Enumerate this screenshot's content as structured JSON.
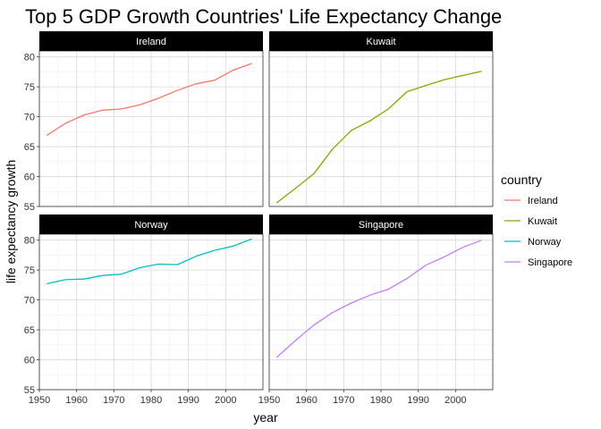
{
  "chart_data": {
    "type": "line",
    "title": "Top 5 GDP Growth Countries' Life Expectancy Change",
    "xlabel": "year",
    "ylabel": "life expectancy growth",
    "xlim": [
      1950,
      2010
    ],
    "x_ticks": [
      1950,
      1960,
      1970,
      1980,
      1990,
      2000
    ],
    "ylim": [
      55,
      81
    ],
    "y_ticks": [
      55,
      60,
      65,
      70,
      75,
      80
    ],
    "grid": true,
    "facets": "2x2, shared y-axis per row",
    "legend": {
      "title": "country",
      "position": "right"
    },
    "x": [
      1952,
      1957,
      1962,
      1967,
      1972,
      1977,
      1982,
      1987,
      1992,
      1997,
      2002,
      2007
    ],
    "series": [
      {
        "name": "Ireland",
        "color": "#F8766D",
        "values": [
          66.9,
          68.9,
          70.3,
          71.1,
          71.3,
          72.0,
          73.1,
          74.4,
          75.5,
          76.1,
          77.8,
          78.9
        ]
      },
      {
        "name": "Kuwait",
        "color": "#7CAE00",
        "values": [
          55.6,
          58.0,
          60.5,
          64.6,
          67.7,
          69.3,
          71.3,
          74.2,
          75.2,
          76.2,
          76.9,
          77.6
        ]
      },
      {
        "name": "Norway",
        "color": "#00BFC4",
        "values": [
          72.7,
          73.4,
          73.5,
          74.1,
          74.3,
          75.4,
          76.0,
          75.9,
          77.3,
          78.3,
          79.0,
          80.2
        ]
      },
      {
        "name": "Singapore",
        "color": "#C77CFF",
        "values": [
          60.4,
          63.2,
          65.8,
          67.9,
          69.5,
          70.8,
          71.8,
          73.6,
          75.8,
          77.2,
          78.8,
          80.0
        ]
      }
    ]
  }
}
